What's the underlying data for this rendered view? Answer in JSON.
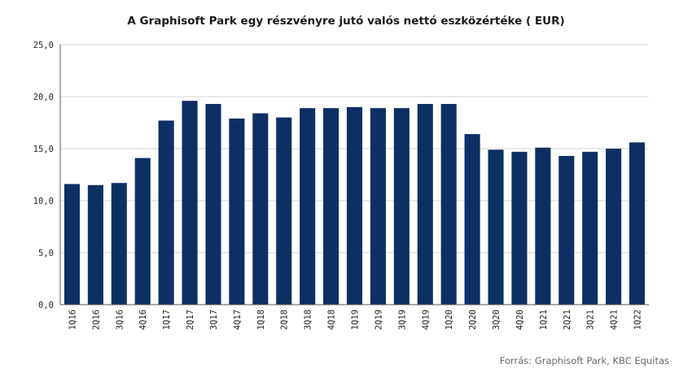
{
  "chart_data": {
    "type": "bar",
    "title": "A Graphisoft Park egy részvényre jutó valós nettó eszközértéke ( EUR)",
    "source": "Forrás: Graphisoft Park, KBC Equitas",
    "xlabel": "",
    "ylabel": "",
    "ylim": [
      0,
      25
    ],
    "yticks": [
      "0,0",
      "5,0",
      "10,0",
      "15,0",
      "20,0",
      "25,0"
    ],
    "grid": true,
    "legend": "none",
    "bar_color": "#0d2f63",
    "categories": [
      "1Q16",
      "2Q16",
      "3Q16",
      "4Q16",
      "1Q17",
      "2Q17",
      "3Q17",
      "4Q17",
      "1Q18",
      "2Q18",
      "3Q18",
      "4Q18",
      "1Q19",
      "2Q19",
      "3Q19",
      "4Q19",
      "1Q20",
      "2Q20",
      "3Q20",
      "4Q20",
      "1Q21",
      "2Q21",
      "3Q21",
      "4Q21",
      "1Q22"
    ],
    "values": [
      11.6,
      11.5,
      11.7,
      14.1,
      17.7,
      19.6,
      19.3,
      17.9,
      18.4,
      18.0,
      18.9,
      18.9,
      19.0,
      18.9,
      18.9,
      19.3,
      19.3,
      16.4,
      14.9,
      14.7,
      15.1,
      14.3,
      14.7,
      15.0,
      15.6
    ]
  }
}
